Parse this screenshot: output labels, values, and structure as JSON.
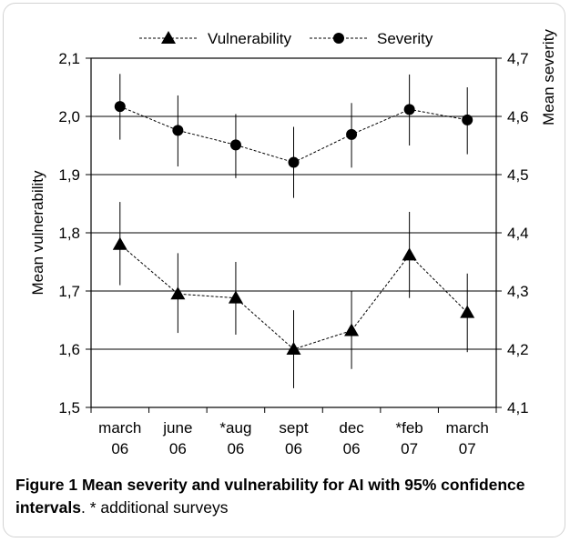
{
  "chart_data": {
    "type": "line",
    "categories": [
      [
        "march",
        "06"
      ],
      [
        "june",
        "06"
      ],
      [
        "*aug",
        "06"
      ],
      [
        "sept",
        "06"
      ],
      [
        "dec",
        "06"
      ],
      [
        "*feb",
        "07"
      ],
      [
        "march",
        "07"
      ]
    ],
    "series": [
      {
        "name": "Vulnerability",
        "axis": "left",
        "marker": "triangle",
        "values": [
          1.78,
          1.695,
          1.688,
          1.6,
          1.632,
          1.762,
          1.663
        ],
        "ci_low": [
          1.71,
          1.628,
          1.625,
          1.533,
          1.566,
          1.688,
          1.595
        ],
        "ci_high": [
          1.853,
          1.765,
          1.75,
          1.667,
          1.7,
          1.836,
          1.73
        ]
      },
      {
        "name": "Severity",
        "axis": "right",
        "marker": "circle",
        "values": [
          4.617,
          4.576,
          4.551,
          4.521,
          4.569,
          4.612,
          4.594
        ],
        "ci_low": [
          4.56,
          4.514,
          4.494,
          4.46,
          4.512,
          4.55,
          4.535
        ],
        "ci_high": [
          4.673,
          4.636,
          4.604,
          4.582,
          4.623,
          4.672,
          4.65
        ]
      }
    ],
    "ylabel_left": "Mean vulnerability",
    "ylabel_right": "Mean severity",
    "ylim_left": [
      1.5,
      2.1
    ],
    "ylim_right": [
      4.1,
      4.7
    ],
    "yticks_left": [
      "1,5",
      "1,6",
      "1,7",
      "1,8",
      "1,9",
      "2,0",
      "2,1"
    ],
    "yticks_right": [
      "4,1",
      "4,2",
      "4,3",
      "4,4",
      "4,5",
      "4,6",
      "4,7"
    ],
    "grid": "horizontal",
    "legend": "top",
    "line_style": "dashed",
    "colors": {
      "series": "#000000",
      "grid": "#000000"
    }
  },
  "caption": {
    "label": "Figure 1",
    "title": "Mean severity and vulnerability for AI with 95% confidence intervals",
    "rest": ". * additional surveys"
  }
}
